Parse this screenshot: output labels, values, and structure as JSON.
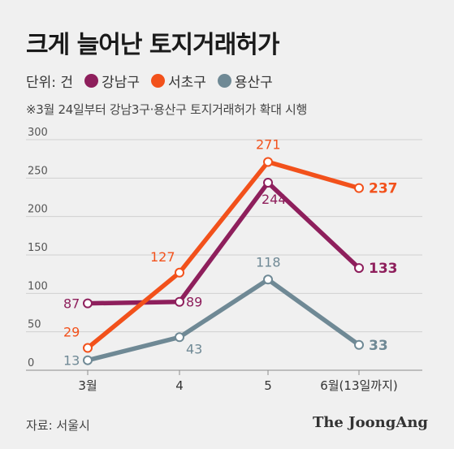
{
  "title": "크게 늘어난 토지거래허가",
  "legend": {
    "unit": "단위: 건",
    "items": [
      {
        "label": "강남구",
        "color": "#8e1f5c"
      },
      {
        "label": "서초구",
        "color": "#f2511b"
      },
      {
        "label": "용산구",
        "color": "#6f8995"
      }
    ]
  },
  "note": "※3월 24일부터 강남3구·용산구 토지거래허가 확대 시행",
  "source": "자료: 서울시",
  "brand": "The JoongAng",
  "chart_data": {
    "type": "line",
    "categories": [
      "3월",
      "4",
      "5",
      "6월(13일까지)"
    ],
    "ylim": [
      0,
      300
    ],
    "yticks": [
      0,
      50,
      100,
      150,
      200,
      250,
      300
    ],
    "grid": true,
    "series": [
      {
        "name": "강남구",
        "color": "#8e1f5c",
        "values": [
          87,
          89,
          244,
          133
        ]
      },
      {
        "name": "서초구",
        "color": "#f2511b",
        "values": [
          29,
          127,
          271,
          237
        ]
      },
      {
        "name": "용산구",
        "color": "#6f8995",
        "values": [
          13,
          43,
          118,
          33
        ]
      }
    ]
  }
}
